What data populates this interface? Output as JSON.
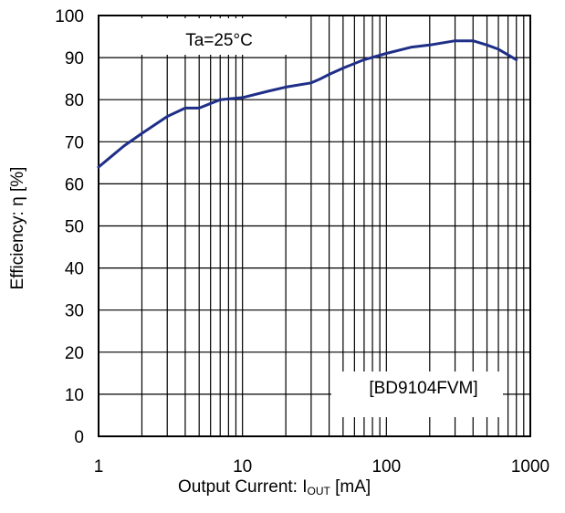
{
  "chart_data": {
    "type": "line",
    "xscale": "log",
    "xlim": [
      1,
      1000
    ],
    "ylim": [
      0,
      100
    ],
    "x_ticks": [
      "1",
      "10",
      "100",
      "1000"
    ],
    "y_ticks": [
      "0",
      "10",
      "20",
      "30",
      "40",
      "50",
      "60",
      "70",
      "80",
      "90",
      "100"
    ],
    "ylabel": "Efficiency: η [%]",
    "xlabel_prefix": "Output Current: I",
    "xlabel_sub": "OUT",
    "xlabel_suffix": " [mA]",
    "annotations": {
      "condition": "Ta=25°C",
      "part": "[BD9104FVM]"
    },
    "grid": true,
    "line_color": "#1f2f88",
    "series": [
      {
        "x": [
          1,
          1.5,
          2,
          3,
          4,
          5,
          7,
          10,
          15,
          20,
          30,
          35,
          40,
          50,
          70,
          100,
          150,
          200,
          300,
          400,
          500,
          600,
          800
        ],
        "values": [
          64,
          69,
          72,
          76,
          78,
          78,
          80,
          80.5,
          82,
          83,
          84,
          85,
          86,
          87.5,
          89.5,
          91,
          92.5,
          93,
          94,
          94,
          93,
          92,
          89.5
        ]
      }
    ]
  }
}
